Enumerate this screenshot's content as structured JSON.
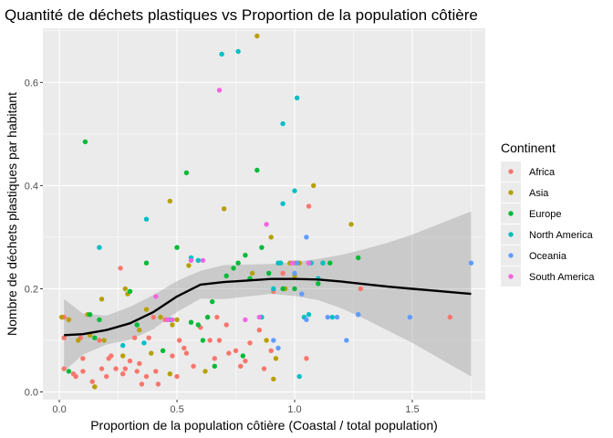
{
  "chart_data": {
    "type": "scatter",
    "title": "Quantité de déchets plastiques vs Proportion de la population côtière",
    "xlabel": "Proportion de la population côtière (Coastal / total population)",
    "ylabel": "Nombre de déchets plastiques par habitant",
    "xlim": [
      -0.07,
      1.81
    ],
    "ylim": [
      -0.015,
      0.705
    ],
    "x_ticks": [
      0.0,
      0.5,
      1.0,
      1.5
    ],
    "x_tick_labels": [
      "0.0",
      "0.5",
      "1.0",
      "1.5"
    ],
    "y_ticks": [
      0.0,
      0.2,
      0.4,
      0.6
    ],
    "y_tick_labels": [
      "0.0",
      "0.2",
      "0.4",
      "0.6"
    ],
    "grid": true,
    "legend": {
      "title": "Continent",
      "placement": "right",
      "entries": [
        {
          "name": "Africa",
          "color": "#F8766D"
        },
        {
          "name": "Asia",
          "color": "#B79F00"
        },
        {
          "name": "Europe",
          "color": "#00BA38"
        },
        {
          "name": "North America",
          "color": "#00BFC4"
        },
        {
          "name": "Oceania",
          "color": "#619CFF"
        },
        {
          "name": "South America",
          "color": "#F564E3"
        }
      ]
    },
    "series": [
      {
        "name": "Africa",
        "color": "#F8766D",
        "points": [
          [
            0.02,
            0.145
          ],
          [
            0.02,
            0.105
          ],
          [
            0.02,
            0.045
          ],
          [
            0.06,
            0.035
          ],
          [
            0.07,
            0.03
          ],
          [
            0.09,
            0.105
          ],
          [
            0.1,
            0.065
          ],
          [
            0.1,
            0.04
          ],
          [
            0.14,
            0.02
          ],
          [
            0.15,
            0.01
          ],
          [
            0.17,
            0.1
          ],
          [
            0.18,
            0.045
          ],
          [
            0.2,
            0.03
          ],
          [
            0.21,
            0.065
          ],
          [
            0.22,
            0.07
          ],
          [
            0.24,
            0.045
          ],
          [
            0.26,
            0.24
          ],
          [
            0.27,
            0.035
          ],
          [
            0.28,
            0.045
          ],
          [
            0.3,
            0.06
          ],
          [
            0.32,
            0.105
          ],
          [
            0.33,
            0.04
          ],
          [
            0.34,
            0.055
          ],
          [
            0.35,
            0.015
          ],
          [
            0.37,
            0.03
          ],
          [
            0.38,
            0.105
          ],
          [
            0.4,
            0.145
          ],
          [
            0.41,
            0.04
          ],
          [
            0.42,
            0.015
          ],
          [
            0.45,
            0.14
          ],
          [
            0.48,
            0.07
          ],
          [
            0.5,
            0.03
          ],
          [
            0.51,
            0.1
          ],
          [
            0.53,
            0.085
          ],
          [
            0.54,
            0.075
          ],
          [
            0.57,
            0.05
          ],
          [
            0.6,
            0.125
          ],
          [
            0.63,
            0.145
          ],
          [
            0.64,
            0.1
          ],
          [
            0.66,
            0.065
          ],
          [
            0.67,
            0.145
          ],
          [
            0.68,
            0.1
          ],
          [
            0.71,
            0.13
          ],
          [
            0.72,
            0.075
          ],
          [
            0.75,
            0.08
          ],
          [
            0.77,
            0.05
          ],
          [
            0.79,
            0.06
          ],
          [
            0.81,
            0.095
          ],
          [
            0.85,
            0.12
          ],
          [
            0.87,
            0.045
          ],
          [
            0.9,
            0.08
          ],
          [
            0.91,
            0.195
          ],
          [
            0.95,
            0.23
          ],
          [
            1.0,
            0.25
          ],
          [
            1.05,
            0.065
          ],
          [
            1.06,
            0.36
          ],
          [
            1.28,
            0.2
          ],
          [
            1.66,
            0.145
          ]
        ]
      },
      {
        "name": "Asia",
        "color": "#B79F00",
        "points": [
          [
            0.01,
            0.145
          ],
          [
            0.04,
            0.14
          ],
          [
            0.08,
            0.1
          ],
          [
            0.12,
            0.15
          ],
          [
            0.13,
            0.11
          ],
          [
            0.15,
            0.01
          ],
          [
            0.18,
            0.18
          ],
          [
            0.19,
            0.1
          ],
          [
            0.27,
            0.07
          ],
          [
            0.28,
            0.2
          ],
          [
            0.29,
            0.19
          ],
          [
            0.34,
            0.12
          ],
          [
            0.37,
            0.16
          ],
          [
            0.39,
            0.075
          ],
          [
            0.43,
            0.145
          ],
          [
            0.47,
            0.37
          ],
          [
            0.47,
            0.035
          ],
          [
            0.48,
            0.13
          ],
          [
            0.5,
            0.14
          ],
          [
            0.55,
            0.245
          ],
          [
            0.62,
            0.04
          ],
          [
            0.7,
            0.355
          ],
          [
            0.82,
            0.23
          ],
          [
            0.84,
            0.69
          ],
          [
            0.88,
            0.1
          ],
          [
            0.9,
            0.3
          ],
          [
            0.91,
            0.025
          ],
          [
            0.92,
            0.065
          ],
          [
            0.94,
            0.25
          ],
          [
            0.96,
            0.2
          ],
          [
            0.98,
            0.25
          ],
          [
            1.0,
            0.225
          ],
          [
            1.02,
            0.25
          ],
          [
            1.08,
            0.4
          ],
          [
            1.12,
            0.25
          ],
          [
            1.24,
            0.325
          ]
        ]
      },
      {
        "name": "Europe",
        "color": "#00BA38",
        "points": [
          [
            0.04,
            0.04
          ],
          [
            0.11,
            0.485
          ],
          [
            0.13,
            0.15
          ],
          [
            0.15,
            0.105
          ],
          [
            0.17,
            0.14
          ],
          [
            0.3,
            0.195
          ],
          [
            0.33,
            0.13
          ],
          [
            0.37,
            0.25
          ],
          [
            0.44,
            0.08
          ],
          [
            0.5,
            0.28
          ],
          [
            0.54,
            0.425
          ],
          [
            0.56,
            0.135
          ],
          [
            0.59,
            0.13
          ],
          [
            0.61,
            0.1
          ],
          [
            0.63,
            0.145
          ],
          [
            0.65,
            0.175
          ],
          [
            0.66,
            0.05
          ],
          [
            0.71,
            0.225
          ],
          [
            0.74,
            0.24
          ],
          [
            0.76,
            0.25
          ],
          [
            0.78,
            0.07
          ],
          [
            0.79,
            0.265
          ],
          [
            0.81,
            0.22
          ],
          [
            0.84,
            0.43
          ],
          [
            0.86,
            0.28
          ],
          [
            0.89,
            0.23
          ],
          [
            0.95,
            0.2
          ],
          [
            1.0,
            0.2
          ],
          [
            1.01,
            0.25
          ],
          [
            1.1,
            0.21
          ],
          [
            1.15,
            0.25
          ],
          [
            1.27,
            0.26
          ]
        ]
      },
      {
        "name": "North America",
        "color": "#00BFC4",
        "points": [
          [
            0.17,
            0.28
          ],
          [
            0.27,
            0.09
          ],
          [
            0.36,
            0.095
          ],
          [
            0.37,
            0.335
          ],
          [
            0.47,
            0.14
          ],
          [
            0.56,
            0.26
          ],
          [
            0.59,
            0.255
          ],
          [
            0.69,
            0.655
          ],
          [
            0.76,
            0.66
          ],
          [
            0.86,
            0.145
          ],
          [
            0.91,
            0.2
          ],
          [
            0.93,
            0.25
          ],
          [
            0.94,
            0.25
          ],
          [
            0.95,
            0.365
          ],
          [
            0.95,
            0.52
          ],
          [
            1.0,
            0.39
          ],
          [
            1.01,
            0.57
          ],
          [
            1.02,
            0.03
          ],
          [
            1.04,
            0.145
          ],
          [
            1.06,
            0.25
          ],
          [
            1.06,
            0.15
          ],
          [
            1.07,
            0.25
          ],
          [
            1.1,
            0.22
          ],
          [
            1.12,
            0.25
          ],
          [
            1.16,
            0.145
          ],
          [
            1.27,
            0.15
          ]
        ]
      },
      {
        "name": "Oceania",
        "color": "#619CFF",
        "points": [
          [
            0.91,
            0.1
          ],
          [
            0.93,
            0.085
          ],
          [
            1.0,
            0.23
          ],
          [
            1.01,
            0.25
          ],
          [
            1.03,
            0.19
          ],
          [
            1.05,
            0.3
          ],
          [
            1.05,
            0.14
          ],
          [
            1.14,
            0.145
          ],
          [
            1.18,
            0.145
          ],
          [
            1.22,
            0.1
          ],
          [
            1.27,
            0.15
          ],
          [
            1.49,
            0.145
          ],
          [
            1.75,
            0.25
          ]
        ]
      },
      {
        "name": "South America",
        "color": "#F564E3",
        "points": [
          [
            0.41,
            0.185
          ],
          [
            0.46,
            0.14
          ],
          [
            0.48,
            0.14
          ],
          [
            0.56,
            0.255
          ],
          [
            0.61,
            0.255
          ],
          [
            0.68,
            0.585
          ],
          [
            0.79,
            0.14
          ],
          [
            0.85,
            0.145
          ],
          [
            0.88,
            0.325
          ],
          [
            0.99,
            0.25
          ],
          [
            1.06,
            0.25
          ]
        ]
      }
    ],
    "smooth": {
      "method": "loess",
      "color": "#000000",
      "band_color": "#999999",
      "line": [
        [
          0.02,
          0.11
        ],
        [
          0.1,
          0.112
        ],
        [
          0.2,
          0.12
        ],
        [
          0.3,
          0.133
        ],
        [
          0.4,
          0.155
        ],
        [
          0.5,
          0.185
        ],
        [
          0.6,
          0.208
        ],
        [
          0.7,
          0.213
        ],
        [
          0.8,
          0.216
        ],
        [
          0.9,
          0.219
        ],
        [
          1.0,
          0.219
        ],
        [
          1.1,
          0.218
        ],
        [
          1.2,
          0.214
        ],
        [
          1.3,
          0.209
        ],
        [
          1.4,
          0.204
        ],
        [
          1.5,
          0.2
        ],
        [
          1.6,
          0.196
        ],
        [
          1.75,
          0.19
        ]
      ],
      "upper": [
        [
          0.02,
          0.18
        ],
        [
          0.1,
          0.152
        ],
        [
          0.2,
          0.148
        ],
        [
          0.3,
          0.165
        ],
        [
          0.4,
          0.188
        ],
        [
          0.5,
          0.215
        ],
        [
          0.6,
          0.235
        ],
        [
          0.7,
          0.246
        ],
        [
          0.8,
          0.247
        ],
        [
          0.9,
          0.248
        ],
        [
          1.0,
          0.252
        ],
        [
          1.1,
          0.258
        ],
        [
          1.2,
          0.266
        ],
        [
          1.3,
          0.277
        ],
        [
          1.4,
          0.29
        ],
        [
          1.5,
          0.305
        ],
        [
          1.6,
          0.323
        ],
        [
          1.75,
          0.35
        ]
      ],
      "lower": [
        [
          0.02,
          0.04
        ],
        [
          0.1,
          0.072
        ],
        [
          0.2,
          0.092
        ],
        [
          0.3,
          0.101
        ],
        [
          0.4,
          0.122
        ],
        [
          0.5,
          0.155
        ],
        [
          0.6,
          0.181
        ],
        [
          0.7,
          0.18
        ],
        [
          0.8,
          0.185
        ],
        [
          0.9,
          0.19
        ],
        [
          1.0,
          0.186
        ],
        [
          1.1,
          0.178
        ],
        [
          1.2,
          0.162
        ],
        [
          1.3,
          0.141
        ],
        [
          1.4,
          0.118
        ],
        [
          1.5,
          0.095
        ],
        [
          1.6,
          0.069
        ],
        [
          1.75,
          0.03
        ]
      ]
    }
  }
}
